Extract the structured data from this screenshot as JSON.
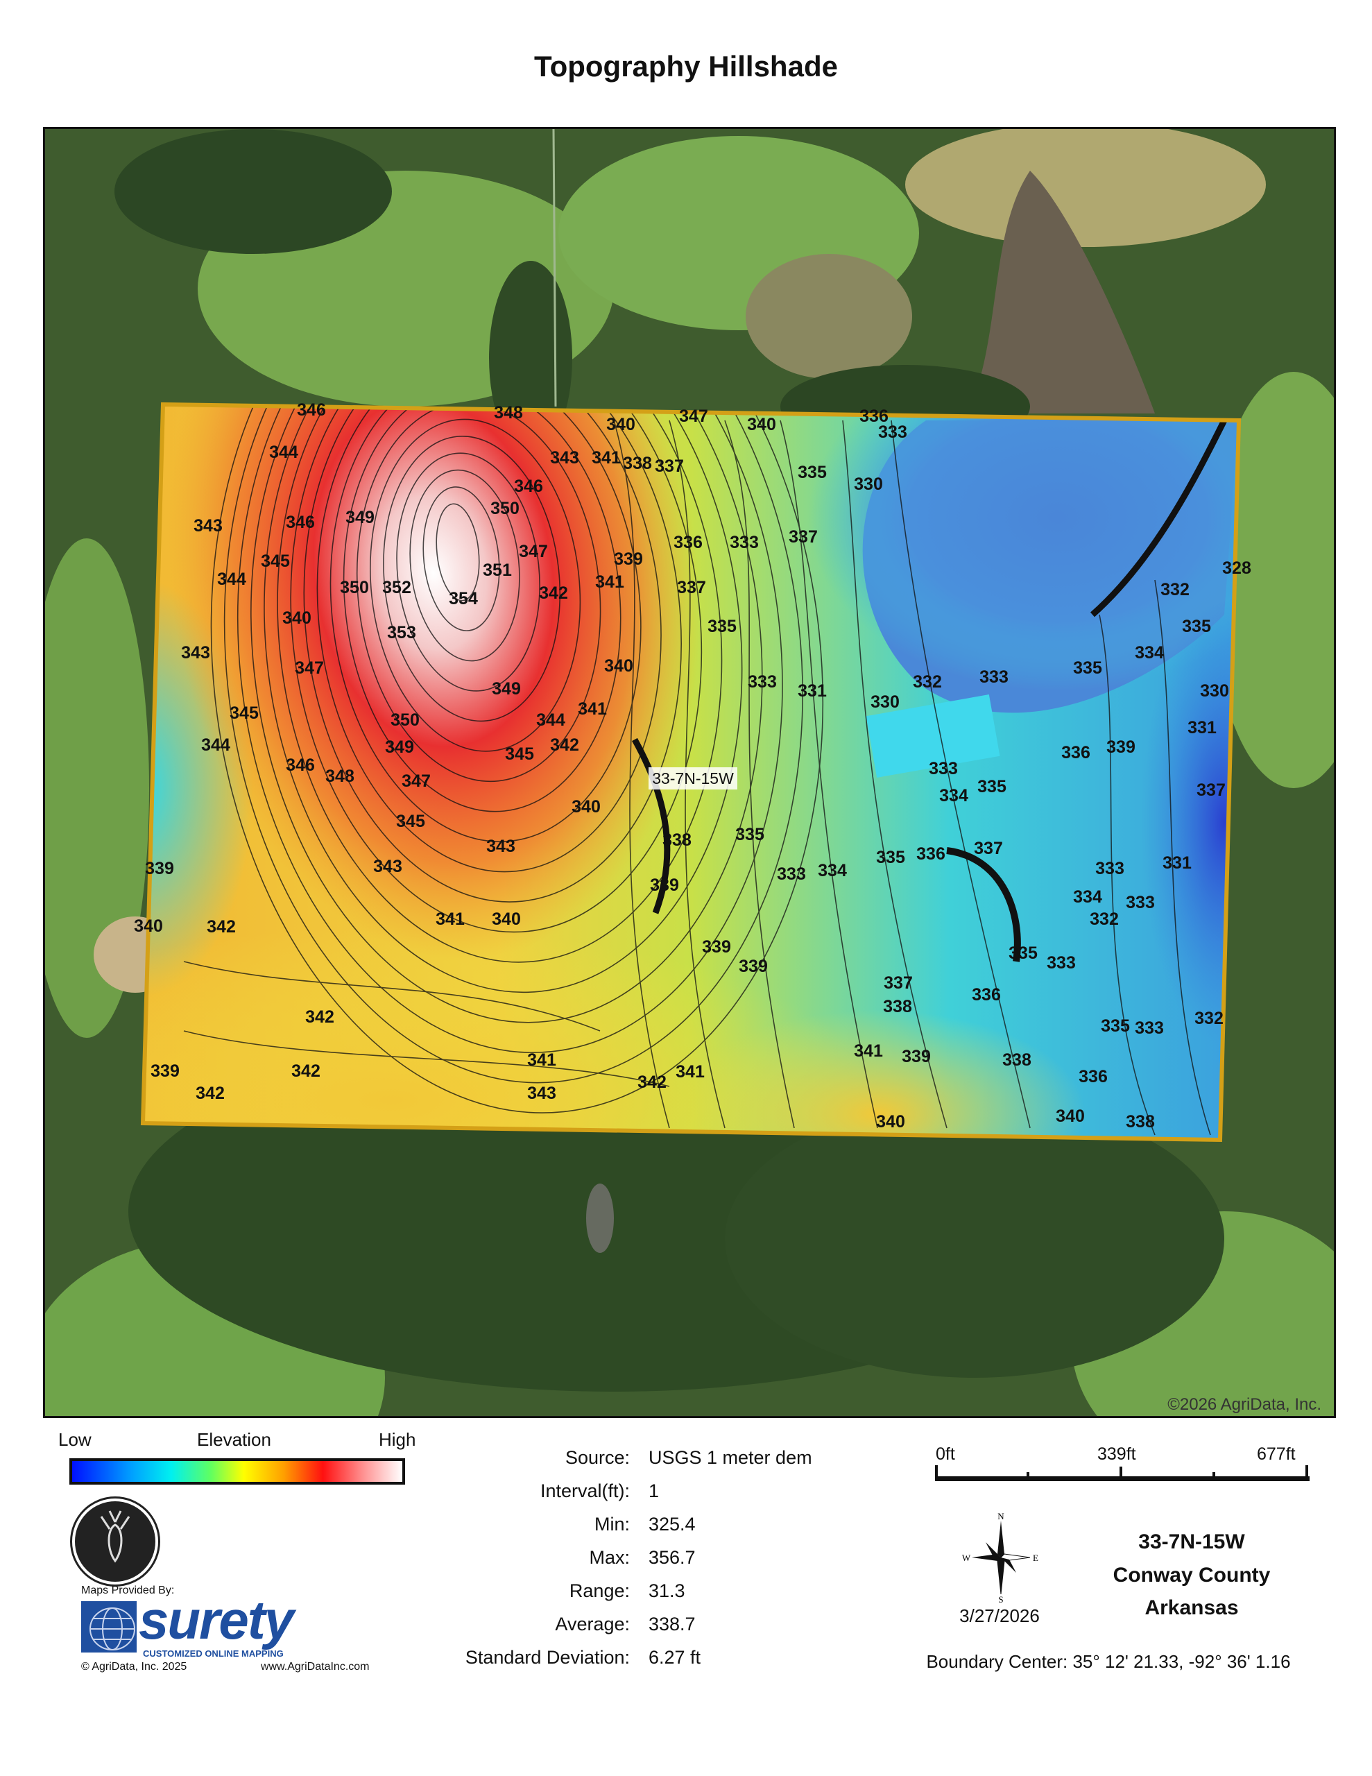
{
  "title": "Topography Hillshade",
  "map": {
    "copyright": "©2026 AgriData, Inc.",
    "field_label": "33-7N-15W",
    "boundary_color": "#d4a017",
    "contour_labels": [
      "346",
      "348",
      "347",
      "340",
      "340",
      "336",
      "333",
      "344",
      "343",
      "341",
      "338",
      "337",
      "335",
      "330",
      "346",
      "350",
      "343",
      "346",
      "349",
      "336",
      "333",
      "337",
      "351",
      "347",
      "339",
      "344",
      "345",
      "350",
      "352",
      "354",
      "353",
      "340",
      "347",
      "342",
      "341",
      "337",
      "335",
      "340",
      "343",
      "345",
      "349",
      "350",
      "349",
      "344",
      "341",
      "333",
      "331",
      "330",
      "332",
      "333",
      "335",
      "334",
      "332",
      "335",
      "328",
      "331",
      "342",
      "344",
      "346",
      "348",
      "345",
      "347",
      "345",
      "343",
      "343",
      "340",
      "338",
      "335",
      "333",
      "334",
      "335",
      "336",
      "337",
      "336",
      "339",
      "333",
      "334",
      "335",
      "339",
      "339",
      "339",
      "341",
      "340",
      "342",
      "340",
      "339",
      "339",
      "342",
      "342",
      "342",
      "343",
      "341",
      "342",
      "341",
      "341",
      "339",
      "337",
      "338",
      "338",
      "336",
      "335",
      "333",
      "336",
      "340",
      "338",
      "340",
      "335",
      "333",
      "332",
      "333",
      "334",
      "332",
      "333",
      "331",
      "337",
      "330"
    ]
  },
  "legend": {
    "low": "Low",
    "title": "Elevation",
    "high": "High",
    "colors": [
      "#0010ff",
      "#00a0ff",
      "#00f0f0",
      "#60ff60",
      "#ffff00",
      "#ffa000",
      "#ff1010",
      "#ffffff"
    ]
  },
  "stats": [
    {
      "label": "Source:",
      "value": "USGS 1 meter dem"
    },
    {
      "label": "Interval(ft):",
      "value": "1"
    },
    {
      "label": "Min:",
      "value": "325.4"
    },
    {
      "label": "Max:",
      "value": "356.7"
    },
    {
      "label": "Range:",
      "value": "31.3"
    },
    {
      "label": "Average:",
      "value": "338.7"
    },
    {
      "label": "Standard Deviation:",
      "value": "6.27 ft"
    }
  ],
  "branding": {
    "maps_provided_by": "Maps Provided By:",
    "surety": "surety",
    "tagline": "CUSTOMIZED ONLINE MAPPING",
    "copyright": "© AgriData, Inc. 2025",
    "website": "www.AgriDataInc.com"
  },
  "scale": {
    "labels": [
      "0ft",
      "339ft",
      "677ft"
    ]
  },
  "compass": {
    "n": "N",
    "s": "S",
    "e": "E",
    "w": "W"
  },
  "date": "3/27/2026",
  "location": {
    "section": "33-7N-15W",
    "county": "Conway County",
    "state": "Arkansas"
  },
  "boundary_center": "Boundary Center: 35° 12' 21.33,  -92° 36' 1.16"
}
